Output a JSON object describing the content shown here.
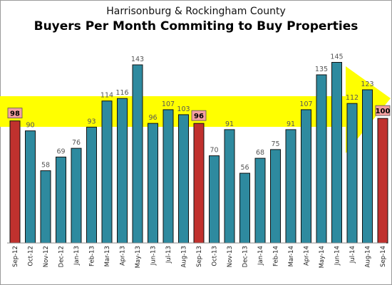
{
  "chart_data": {
    "type": "bar",
    "subtitle": "Harrisonburg & Rockingham County",
    "title": "Buyers Per Month Commiting to Buy Properties",
    "categories": [
      "Sep-12",
      "Oct-12",
      "Nov-12",
      "Dec-12",
      "Jan-13",
      "Feb-13",
      "Mar-13",
      "Apr-13",
      "May-13",
      "Jun-13",
      "Jul-13",
      "Aug-13",
      "Sep-13",
      "Oct-13",
      "Nov-13",
      "Dec-13",
      "Jan-14",
      "Feb-14",
      "Mar-14",
      "Apr-14",
      "May-14",
      "Jun-14",
      "Jul-14",
      "Aug-14",
      "Sep-14"
    ],
    "values": [
      98,
      90,
      58,
      69,
      76,
      93,
      114,
      116,
      143,
      96,
      107,
      103,
      96,
      70,
      91,
      56,
      68,
      75,
      91,
      107,
      135,
      145,
      112,
      123,
      100
    ],
    "highlighted_categories": [
      "Sep-12",
      "Sep-13",
      "Sep-14"
    ],
    "ylim": [
      0,
      160
    ],
    "grid": false,
    "xlabel": "",
    "ylabel": "",
    "colors": {
      "bar": "#2e8a9f",
      "bar_highlight": "#c0312e",
      "bar_outline": "#111111",
      "label_highlight_bg": "#f4a0a0",
      "arrow": "#ffff00"
    }
  }
}
